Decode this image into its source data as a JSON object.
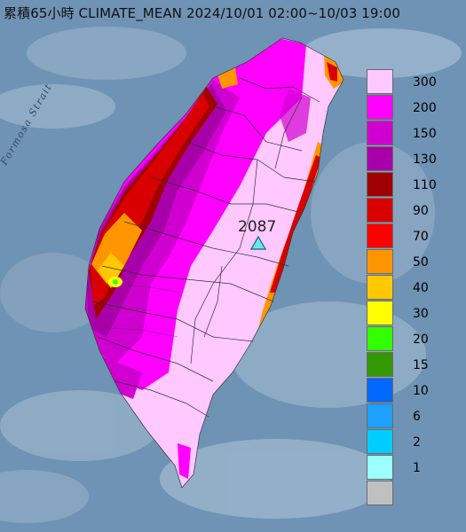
{
  "title": "累積65小時 CLIMATE_MEAN 2024/10/01 02:00~10/03 19:00",
  "strait_label": "Formosa Strait",
  "station": {
    "value": "2087",
    "marker": "triangle-station-marker",
    "color": "#6fe3ef"
  },
  "legend": {
    "items": [
      {
        "label": "300",
        "color": "#ffc8ff"
      },
      {
        "label": "200",
        "color": "#ff00ff"
      },
      {
        "label": "150",
        "color": "#d000d0"
      },
      {
        "label": "130",
        "color": "#a800a8"
      },
      {
        "label": "110",
        "color": "#a00000"
      },
      {
        "label": "90",
        "color": "#d80000"
      },
      {
        "label": "70",
        "color": "#ff0000"
      },
      {
        "label": "50",
        "color": "#ff9600"
      },
      {
        "label": "40",
        "color": "#ffc800"
      },
      {
        "label": "30",
        "color": "#ffff00"
      },
      {
        "label": "20",
        "color": "#33ff00"
      },
      {
        "label": "15",
        "color": "#339900"
      },
      {
        "label": "10",
        "color": "#0068ff"
      },
      {
        "label": "6",
        "color": "#1ea0ff"
      },
      {
        "label": "2",
        "color": "#00cdff"
      },
      {
        "label": "1",
        "color": "#9bffff"
      },
      {
        "label": "",
        "color": "#c0c0c0"
      }
    ]
  }
}
